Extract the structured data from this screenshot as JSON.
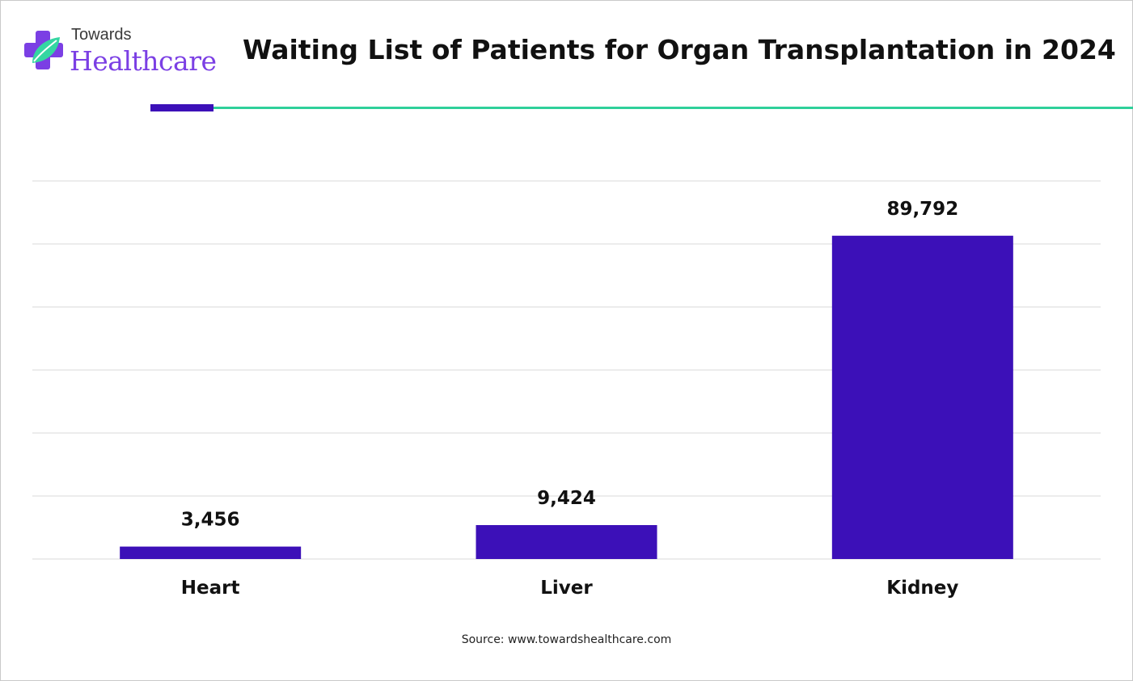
{
  "brand": {
    "line1": "Towards",
    "line2": "Healthcare"
  },
  "source_text": "Source: www.towardshealthcare.com",
  "colors": {
    "bar": "#3c10b8",
    "accent_green": "#2fd09a",
    "gridline": "#d9d9d9",
    "logo_purple": "#7b3fe4"
  },
  "chart_data": {
    "type": "bar",
    "title": "Waiting List of Patients for Organ Transplantation in 2024",
    "categories": [
      "Heart",
      "Liver",
      "Kidney"
    ],
    "values": [
      3456,
      9424,
      89792
    ],
    "value_labels": [
      "3,456",
      "9,424",
      "89,792"
    ],
    "xlabel": "",
    "ylabel": "",
    "ylim": [
      0,
      105000
    ],
    "grid": true,
    "legend": "none"
  }
}
